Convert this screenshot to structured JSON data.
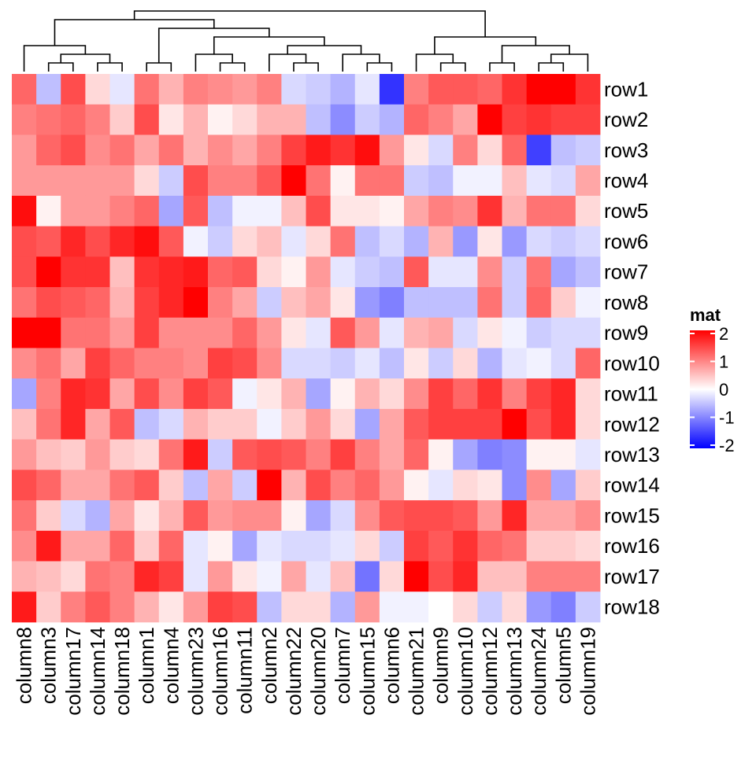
{
  "chart_data": {
    "type": "heatmap",
    "title": "",
    "xlabel": "",
    "ylabel": "",
    "columns": [
      "column8",
      "column3",
      "column17",
      "column14",
      "column18",
      "column1",
      "column4",
      "column23",
      "column16",
      "column11",
      "column2",
      "column22",
      "column20",
      "column7",
      "column15",
      "column6",
      "column21",
      "column9",
      "column10",
      "column12",
      "column13",
      "column24",
      "column5",
      "column19"
    ],
    "rows": [
      "row1",
      "row2",
      "row3",
      "row4",
      "row5",
      "row6",
      "row7",
      "row8",
      "row9",
      "row10",
      "row11",
      "row12",
      "row13",
      "row14",
      "row15",
      "row16",
      "row17",
      "row18"
    ],
    "values": [
      [
        1.2,
        -0.5,
        1.4,
        0.3,
        -0.2,
        1.1,
        0.6,
        1.0,
        0.9,
        0.8,
        1.0,
        -0.3,
        -0.4,
        -0.6,
        -0.2,
        -1.6,
        1.0,
        1.3,
        1.3,
        1.2,
        1.6,
        2.2,
        2.2,
        1.6
      ],
      [
        1.0,
        1.1,
        1.2,
        1.0,
        0.4,
        1.4,
        0.2,
        0.6,
        0.1,
        0.3,
        0.6,
        0.6,
        -0.5,
        -0.9,
        -0.4,
        -0.6,
        1.2,
        1.0,
        0.7,
        2.1,
        1.5,
        1.6,
        1.5,
        1.5
      ],
      [
        0.8,
        1.2,
        1.4,
        0.9,
        1.1,
        0.7,
        1.1,
        0.6,
        0.9,
        0.7,
        1.0,
        1.5,
        1.8,
        1.6,
        1.9,
        0.8,
        0.2,
        -0.3,
        1.0,
        0.3,
        1.2,
        -1.5,
        -0.5,
        -0.4
      ],
      [
        0.8,
        0.8,
        0.8,
        0.8,
        0.8,
        0.3,
        -0.4,
        1.4,
        1.0,
        1.0,
        1.3,
        2.0,
        1.1,
        0.1,
        1.1,
        1.1,
        -0.4,
        -0.5,
        -0.1,
        -0.1,
        0.5,
        -0.2,
        -0.3,
        0.7
      ],
      [
        1.9,
        0.1,
        0.8,
        0.8,
        1.0,
        1.2,
        -0.7,
        1.3,
        -0.5,
        -0.1,
        -0.1,
        0.5,
        1.4,
        0.2,
        0.2,
        0.1,
        0.7,
        1.0,
        0.9,
        1.6,
        0.6,
        1.1,
        1.1,
        0.3
      ],
      [
        1.4,
        1.3,
        1.7,
        1.4,
        1.7,
        1.9,
        1.3,
        -0.1,
        -0.4,
        0.3,
        0.5,
        -0.2,
        0.3,
        1.1,
        -0.5,
        -0.3,
        -0.6,
        0.6,
        -0.8,
        0.2,
        -0.8,
        -0.3,
        -0.4,
        -0.3
      ],
      [
        1.4,
        2.0,
        1.6,
        1.6,
        0.5,
        1.6,
        1.7,
        1.8,
        1.2,
        1.3,
        0.3,
        0.1,
        0.8,
        -0.2,
        -0.4,
        -0.5,
        1.3,
        -0.2,
        -0.2,
        0.9,
        -0.4,
        1.1,
        -0.7,
        -0.5
      ],
      [
        1.1,
        1.4,
        1.3,
        1.2,
        0.6,
        1.5,
        1.7,
        2.0,
        1.0,
        0.7,
        -0.4,
        0.5,
        0.7,
        0.2,
        -0.8,
        -1.0,
        -0.5,
        -0.5,
        -0.5,
        1.1,
        -0.4,
        1.2,
        0.4,
        -0.1
      ],
      [
        2.1,
        2.2,
        1.1,
        1.1,
        0.8,
        1.5,
        0.9,
        0.9,
        0.9,
        1.2,
        0.8,
        0.2,
        -0.2,
        1.3,
        0.8,
        -0.2,
        0.6,
        0.7,
        -0.3,
        0.2,
        -0.1,
        -0.4,
        -0.3,
        -0.3
      ],
      [
        0.9,
        1.1,
        0.7,
        1.5,
        1.2,
        1.0,
        1.0,
        0.9,
        1.5,
        1.4,
        0.9,
        -0.3,
        -0.3,
        -0.4,
        -0.2,
        -0.5,
        0.2,
        -0.4,
        0.3,
        -0.6,
        -0.2,
        -0.1,
        -0.3,
        1.2
      ],
      [
        -0.7,
        1.0,
        1.7,
        1.6,
        0.7,
        1.4,
        0.9,
        1.5,
        1.3,
        -0.1,
        0.2,
        0.6,
        -0.7,
        0.1,
        0.6,
        0.3,
        0.9,
        1.5,
        1.2,
        1.6,
        1.0,
        1.5,
        1.7,
        0.3
      ],
      [
        0.5,
        1.1,
        1.7,
        0.7,
        1.3,
        -0.5,
        -0.3,
        0.6,
        0.4,
        0.4,
        -0.1,
        0.4,
        0.8,
        0.3,
        -0.7,
        0.7,
        1.3,
        1.5,
        1.5,
        1.5,
        2.2,
        1.4,
        1.7,
        0.3
      ],
      [
        0.8,
        0.5,
        0.4,
        0.8,
        0.4,
        0.3,
        1.1,
        1.8,
        -0.4,
        1.3,
        1.4,
        1.3,
        1.0,
        1.5,
        1.0,
        0.7,
        1.2,
        0.1,
        -0.7,
        -1.0,
        -0.9,
        0.1,
        0.1,
        -0.2
      ],
      [
        1.4,
        1.2,
        0.7,
        0.7,
        1.1,
        1.3,
        0.4,
        -0.5,
        0.7,
        -0.4,
        2.0,
        0.6,
        1.4,
        1.0,
        1.2,
        0.8,
        0.1,
        -0.2,
        0.3,
        0.2,
        -0.9,
        0.9,
        -0.7,
        0.4
      ],
      [
        1.1,
        0.4,
        -0.3,
        -0.6,
        0.7,
        0.2,
        0.6,
        1.3,
        0.8,
        0.9,
        0.9,
        0.1,
        -0.7,
        -0.3,
        0.9,
        1.3,
        1.4,
        1.4,
        1.3,
        0.8,
        1.7,
        0.7,
        0.7,
        0.9
      ],
      [
        0.9,
        1.8,
        0.7,
        0.7,
        1.2,
        0.4,
        1.2,
        -0.2,
        0.1,
        -0.7,
        -0.2,
        -0.3,
        -0.3,
        -0.2,
        0.3,
        -0.4,
        1.5,
        1.3,
        1.6,
        1.2,
        1.1,
        0.4,
        0.4,
        0.3
      ],
      [
        0.6,
        0.5,
        0.3,
        1.1,
        1.0,
        1.7,
        1.5,
        -0.2,
        0.8,
        0.2,
        -0.1,
        0.7,
        -0.2,
        0.5,
        -1.1,
        0.3,
        2.2,
        1.4,
        1.7,
        0.5,
        0.5,
        1.0,
        1.0,
        1.0
      ],
      [
        1.8,
        0.4,
        1.0,
        1.3,
        1.0,
        0.6,
        0.2,
        0.8,
        1.5,
        1.4,
        -0.5,
        0.3,
        0.3,
        -0.6,
        0.8,
        -0.1,
        -0.1,
        0.0,
        0.3,
        -0.4,
        0.3,
        -0.8,
        -1.0,
        -0.4
      ]
    ],
    "color_scale": {
      "low": "#0000FF",
      "mid": "#FFFFFF",
      "high": "#FF0000",
      "min": -2,
      "max": 2
    },
    "legend": {
      "title": "mat",
      "ticks": [
        "2",
        "1",
        "0",
        "-1",
        "-2"
      ],
      "position": "right"
    },
    "column_dendrogram": true,
    "grid": false
  }
}
